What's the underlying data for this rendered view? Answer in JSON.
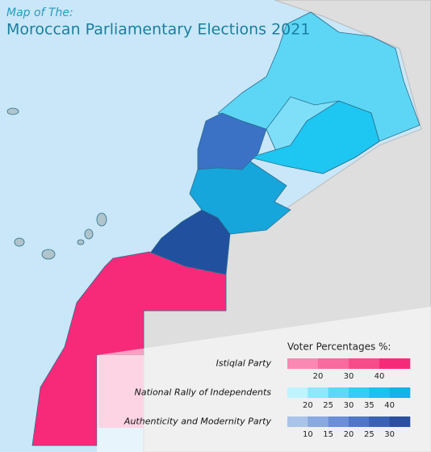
{
  "header": {
    "subtitle": "Map of The:",
    "title": "Moroccan Parliamentary Elections 2021"
  },
  "legend": {
    "title": "Voter Percentages %:",
    "parties": [
      {
        "name": "Istiqlal Party",
        "colors": [
          "#fb88b2",
          "#f96a9e",
          "#f84b8a",
          "#f72a7a"
        ],
        "ticks": [
          20,
          30,
          40
        ]
      },
      {
        "name": "National Rally of Independents",
        "colors": [
          "#bff3fd",
          "#8ee7fa",
          "#5dd9f6",
          "#35cdf3",
          "#1cc2ef",
          "#14b3e6"
        ],
        "ticks": [
          20,
          25,
          30,
          35,
          40
        ]
      },
      {
        "name": "Authenticity and Modernity Party",
        "colors": [
          "#aac3ea",
          "#8aa9e0",
          "#6a8fd6",
          "#4f77c8",
          "#3a62b4",
          "#2a4f9e"
        ],
        "ticks": [
          10,
          15,
          20,
          25,
          30
        ]
      }
    ]
  }
}
